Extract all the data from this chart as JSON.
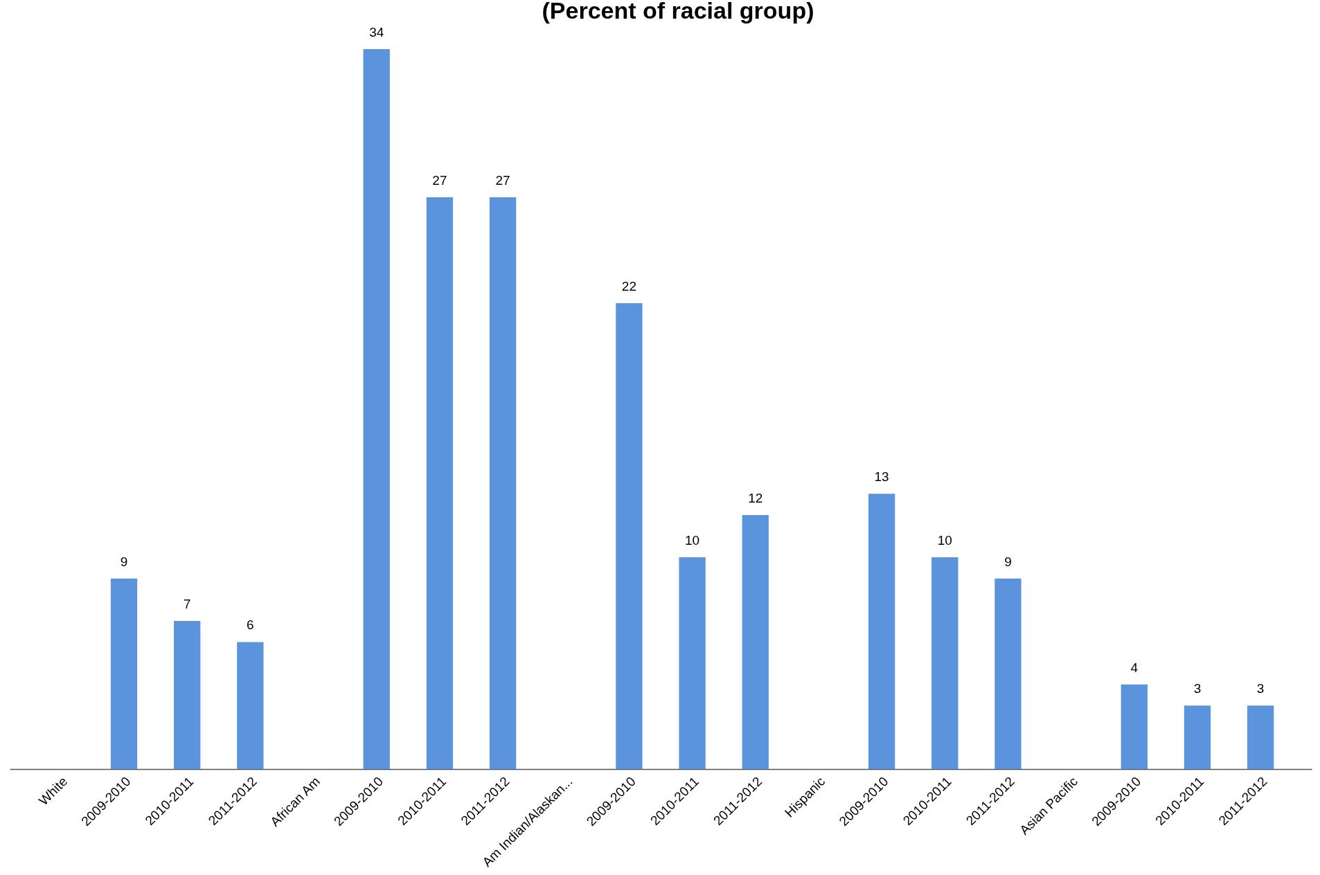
{
  "chart_data": {
    "type": "bar",
    "title": "(Percent of racial group)",
    "categories": [
      "White",
      "2009-2010",
      "2010-2011",
      "2011-2012",
      "African Am",
      "2009-2010",
      "2010-2011",
      "2011-2012",
      "Am Indian/Alaskan...",
      "2009-2010",
      "2010-2011",
      "2011-2012",
      "Hispanic",
      "2009-2010",
      "2010-2011",
      "2011-2012",
      "Asian Pacific",
      "2009-2010",
      "2010-2011",
      "2011-2012"
    ],
    "values": [
      null,
      9,
      7,
      6,
      null,
      34,
      27,
      27,
      null,
      22,
      10,
      12,
      null,
      13,
      10,
      9,
      null,
      4,
      3,
      3
    ],
    "color": "#5b93dd",
    "data_labels": true
  }
}
